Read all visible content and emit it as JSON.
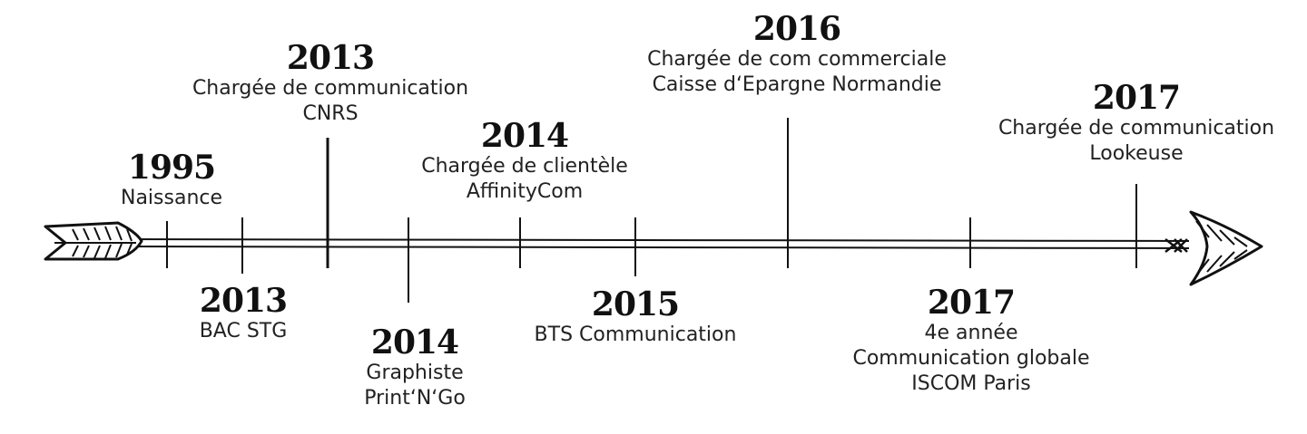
{
  "timeline": {
    "events": [
      {
        "id": "1995",
        "year": "1995",
        "lines": [
          "Naissance"
        ]
      },
      {
        "id": "2013-bac",
        "year": "2013",
        "lines": [
          "BAC STG"
        ]
      },
      {
        "id": "2013-cnrs",
        "year": "2013",
        "lines": [
          "Chargée de communication",
          "CNRS"
        ]
      },
      {
        "id": "2014-graphiste",
        "year": "2014",
        "lines": [
          "Graphiste",
          "Print‘N‘Go"
        ]
      },
      {
        "id": "2014-clientele",
        "year": "2014",
        "lines": [
          "Chargée de clientèle",
          "AffinityCom"
        ]
      },
      {
        "id": "2015",
        "year": "2015",
        "lines": [
          "BTS Communication"
        ]
      },
      {
        "id": "2016",
        "year": "2016",
        "lines": [
          "Chargée de com commerciale",
          "Caisse d‘Epargne Normandie"
        ]
      },
      {
        "id": "2017-iscom",
        "year": "2017",
        "lines": [
          "4e année",
          "Communication globale",
          "ISCOM Paris"
        ]
      },
      {
        "id": "2017-lookeuse",
        "year": "2017",
        "lines": [
          "Chargée de communication",
          "Lookeuse"
        ]
      }
    ]
  }
}
